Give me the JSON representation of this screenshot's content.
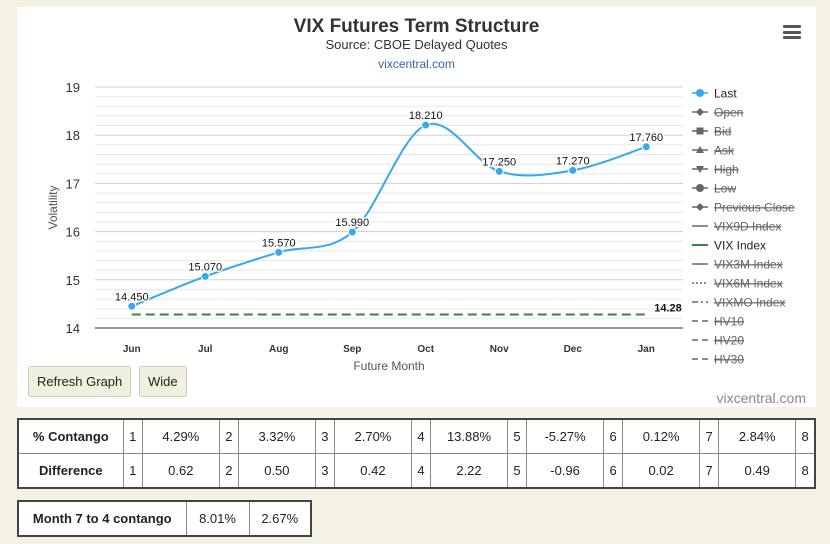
{
  "chart_data": {
    "type": "line",
    "title": "VIX Futures Term Structure",
    "subtitle": "Source: CBOE Delayed Quotes",
    "source_link": "vixcentral.com",
    "xlabel": "Future Month",
    "ylabel": "Volatility",
    "categories": [
      "Jun",
      "Jul",
      "Aug",
      "Sep",
      "Oct",
      "Nov",
      "Dec",
      "Jan"
    ],
    "ylim": [
      14,
      19
    ],
    "yticks": [
      14,
      15,
      16,
      17,
      18,
      19
    ],
    "grid": true,
    "legend_position": "right",
    "series": [
      {
        "name": "Last",
        "values": [
          14.45,
          15.07,
          15.57,
          15.99,
          18.21,
          17.25,
          17.27,
          17.76
        ],
        "labels": [
          "14.450",
          "15.070",
          "15.570",
          "15.990",
          "18.210",
          "17.250",
          "17.270",
          "17.760"
        ],
        "color": "#36a9f0"
      },
      {
        "name": "VIX Index",
        "values": [
          14.28,
          14.28,
          14.28,
          14.28,
          14.28,
          14.28,
          14.28,
          14.28
        ],
        "end_label": "14.28",
        "color": "#2e8b2e",
        "dash": true
      }
    ],
    "legend": [
      {
        "name": "Last",
        "symbol": "dot-line",
        "color": "#36a9f0",
        "hidden": false
      },
      {
        "name": "Open",
        "symbol": "diamond",
        "color": "#666",
        "hidden": true
      },
      {
        "name": "Bid",
        "symbol": "square",
        "color": "#666",
        "hidden": true
      },
      {
        "name": "Ask",
        "symbol": "triangle",
        "color": "#666",
        "hidden": true
      },
      {
        "name": "High",
        "symbol": "triangle-down",
        "color": "#666",
        "hidden": true
      },
      {
        "name": "Low",
        "symbol": "circle",
        "color": "#666",
        "hidden": true
      },
      {
        "name": "Previous Close",
        "symbol": "diamond",
        "color": "#666",
        "hidden": true
      },
      {
        "name": "VIX9D Index",
        "symbol": "line",
        "color": "#666",
        "hidden": true
      },
      {
        "name": "VIX Index",
        "symbol": "line",
        "color": "#2e8b2e",
        "hidden": false
      },
      {
        "name": "VIX3M Index",
        "symbol": "line",
        "color": "#666",
        "hidden": true
      },
      {
        "name": "VIX6M Index",
        "symbol": "dotted",
        "color": "#666",
        "hidden": true
      },
      {
        "name": "VIXMO Index",
        "symbol": "dashdot",
        "color": "#666",
        "hidden": true
      },
      {
        "name": "HV10",
        "symbol": "dashed",
        "color": "#666",
        "hidden": true
      },
      {
        "name": "HV20",
        "symbol": "dashed",
        "color": "#666",
        "hidden": true
      },
      {
        "name": "HV30",
        "symbol": "dashed",
        "color": "#666",
        "hidden": true
      }
    ]
  },
  "buttons": {
    "refresh": "Refresh Graph",
    "wide": "Wide"
  },
  "credit": "vixcentral.com",
  "contango_table": {
    "rows": [
      {
        "label": "% Contango",
        "cells": [
          "1",
          "4.29%",
          "2",
          "3.32%",
          "3",
          "2.70%",
          "4",
          "13.88%",
          "5",
          "-5.27%",
          "6",
          "0.12%",
          "7",
          "2.84%",
          "8"
        ]
      },
      {
        "label": "Difference",
        "cells": [
          "1",
          "0.62",
          "2",
          "0.50",
          "3",
          "0.42",
          "4",
          "2.22",
          "5",
          "-0.96",
          "6",
          "0.02",
          "7",
          "0.49",
          "8"
        ]
      }
    ]
  },
  "month_table": {
    "label": "Month 7 to 4 contango",
    "values": [
      "8.01%",
      "2.67%"
    ]
  }
}
